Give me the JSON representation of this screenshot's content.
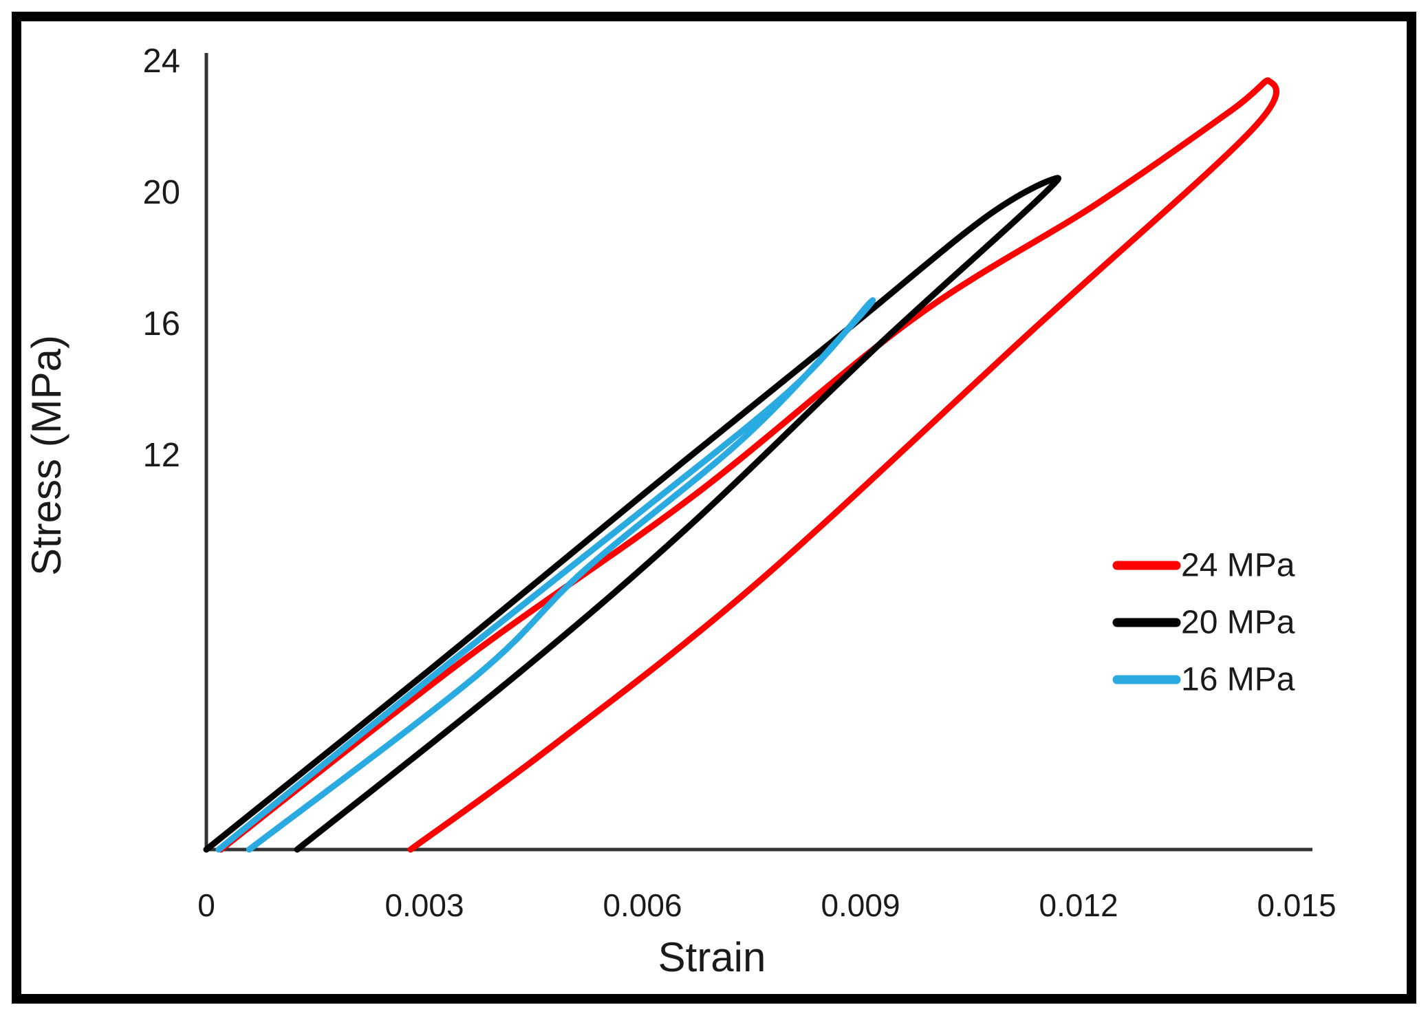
{
  "figure": {
    "background_color": "#ffffff",
    "border_color": "#000000"
  },
  "axes": {
    "x": {
      "title": "Strain",
      "tick_labels": [
        "0",
        "0.003",
        "0.006",
        "0.009",
        "0.012",
        "0.015"
      ],
      "tick_values": [
        0,
        0.003,
        0.006,
        0.009,
        0.012,
        0.015
      ],
      "min": 0,
      "max": 0.015
    },
    "y": {
      "title": "Stress (MPa)",
      "tick_labels": [
        "24",
        "20",
        "16",
        "12"
      ],
      "tick_values": [
        24,
        20,
        16,
        12
      ],
      "min": 0,
      "max": 24
    }
  },
  "legend": {
    "position": "right-middle",
    "items": [
      {
        "label": "24 MPa",
        "color": "#FF0000"
      },
      {
        "label": "20 MPa",
        "color": "#000000"
      },
      {
        "label": "16 MPa",
        "color": "#29ABE2"
      }
    ]
  },
  "chart_data": {
    "type": "line",
    "description": "Stress-strain hysteresis loops (loading then unloading) for three peak stress levels",
    "xlabel": "Strain",
    "ylabel": "Stress (MPa)",
    "xlim": [
      0,
      0.015
    ],
    "ylim": [
      0,
      24
    ],
    "grid": false,
    "series": [
      {
        "name": "24 MPa",
        "color": "#FF0000",
        "peak": {
          "strain": 0.0146,
          "stress": 23.4
        },
        "residual_strain": 0.00281,
        "loading": [
          [
            0.0002,
            0.0
          ],
          [
            0.00356,
            5.8
          ],
          [
            0.00672,
            10.8
          ],
          [
            0.00975,
            16.2
          ],
          [
            0.01221,
            19.6
          ],
          [
            0.0141,
            22.5
          ],
          [
            0.01462,
            23.4
          ]
        ],
        "unloading": [
          [
            0.01438,
            21.9
          ],
          [
            0.01136,
            15.8
          ],
          [
            0.00757,
            8.1
          ],
          [
            0.00473,
            3.1
          ],
          [
            0.00281,
            0.0
          ]
        ]
      },
      {
        "name": "20 MPa",
        "color": "#000000",
        "peak": {
          "strain": 0.01164,
          "stress": 20.4
        },
        "residual_strain": 0.00125,
        "loading": [
          [
            0.0,
            0.0
          ],
          [
            0.00309,
            5.5
          ],
          [
            0.00606,
            10.9
          ],
          [
            0.0088,
            15.8
          ],
          [
            0.01069,
            19.2
          ],
          [
            0.01164,
            20.4
          ]
        ],
        "unloading": [
          [
            0.0114,
            19.7
          ],
          [
            0.00927,
            15.4
          ],
          [
            0.00662,
            9.8
          ],
          [
            0.00426,
            5.3
          ],
          [
            0.00125,
            0.0
          ]
        ]
      },
      {
        "name": "16 MPa",
        "color": "#29ABE2",
        "peak": {
          "strain": 0.00911,
          "stress": 16.6
        },
        "residual_strain": 0.00059,
        "loading": [
          [
            0.00017,
            0.0
          ],
          [
            0.00313,
            5.3
          ],
          [
            0.00587,
            10.1
          ],
          [
            0.00804,
            14.0
          ],
          [
            0.00911,
            16.6
          ]
        ],
        "unloading": [
          [
            0.00885,
            15.9
          ],
          [
            0.00738,
            12.5
          ],
          [
            0.0052,
            8.5
          ],
          [
            0.00372,
            5.3
          ],
          [
            0.00059,
            0.0
          ]
        ]
      }
    ]
  }
}
